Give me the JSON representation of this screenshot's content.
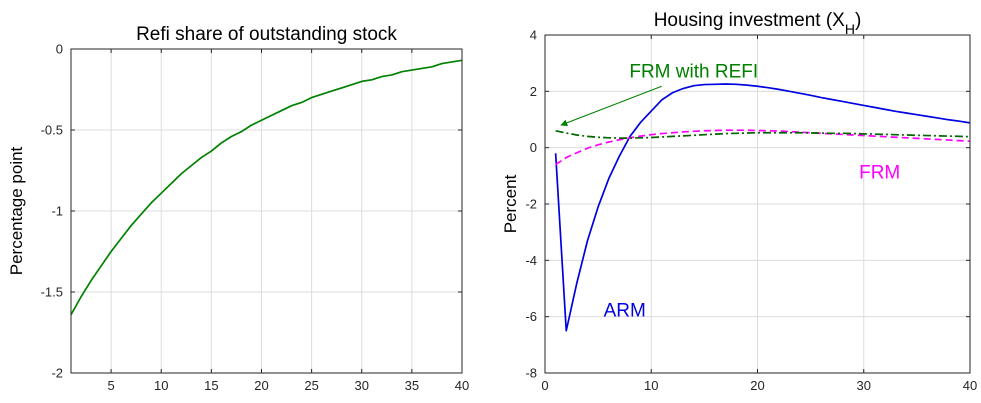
{
  "chart_data": [
    {
      "type": "line",
      "title": "Refi share of outstanding stock",
      "xlabel": "",
      "ylabel": "Percentage point",
      "xlim": [
        1,
        40
      ],
      "ylim": [
        -2,
        0
      ],
      "xticks": [
        5,
        10,
        15,
        20,
        25,
        30,
        35,
        40
      ],
      "yticks": [
        -2,
        -1.5,
        -1,
        -0.5,
        0
      ],
      "grid": true,
      "series": [
        {
          "color": "#008000",
          "style": "solid",
          "x": [
            1,
            2,
            3,
            4,
            5,
            6,
            7,
            8,
            9,
            10,
            11,
            12,
            13,
            14,
            15,
            16,
            17,
            18,
            19,
            20,
            21,
            22,
            23,
            24,
            25,
            26,
            27,
            28,
            29,
            30,
            31,
            32,
            33,
            34,
            35,
            36,
            37,
            38,
            39,
            40
          ],
          "values": [
            -1.64,
            -1.53,
            -1.43,
            -1.34,
            -1.25,
            -1.17,
            -1.09,
            -1.02,
            -0.95,
            -0.89,
            -0.83,
            -0.77,
            -0.72,
            -0.67,
            -0.63,
            -0.58,
            -0.54,
            -0.51,
            -0.47,
            -0.44,
            -0.41,
            -0.38,
            -0.35,
            -0.33,
            -0.3,
            -0.28,
            -0.26,
            -0.24,
            -0.22,
            -0.2,
            -0.19,
            -0.17,
            -0.16,
            -0.14,
            -0.13,
            -0.12,
            -0.11,
            -0.09,
            -0.08,
            -0.07
          ]
        }
      ]
    },
    {
      "type": "line",
      "title": "Housing investment (X",
      "title_sub": "H",
      "title_close": ")",
      "xlabel": "",
      "ylabel": "Percent",
      "xlim": [
        0,
        40
      ],
      "ylim": [
        -8,
        4
      ],
      "xticks": [
        0,
        10,
        20,
        30,
        40
      ],
      "yticks": [
        -8,
        -6,
        -4,
        -2,
        0,
        2,
        4
      ],
      "grid": true,
      "series": [
        {
          "name": "ARM",
          "color": "#0000e0",
          "style": "solid",
          "x": [
            1,
            2,
            3,
            4,
            5,
            6,
            7,
            8,
            9,
            10,
            11,
            12,
            13,
            14,
            15,
            16,
            17,
            18,
            19,
            20,
            21,
            22,
            23,
            24,
            25,
            26,
            27,
            28,
            29,
            30,
            31,
            32,
            33,
            34,
            35,
            36,
            37,
            38,
            39,
            40
          ],
          "values": [
            -0.2,
            -6.5,
            -4.8,
            -3.3,
            -2.1,
            -1.1,
            -0.3,
            0.4,
            0.9,
            1.3,
            1.7,
            1.95,
            2.1,
            2.2,
            2.24,
            2.25,
            2.26,
            2.25,
            2.22,
            2.18,
            2.13,
            2.07,
            2.0,
            1.93,
            1.86,
            1.78,
            1.71,
            1.64,
            1.57,
            1.5,
            1.43,
            1.36,
            1.29,
            1.23,
            1.17,
            1.11,
            1.05,
            0.99,
            0.94,
            0.88
          ]
        },
        {
          "name": "FRM",
          "color": "#ff00ff",
          "style": "dashed",
          "x": [
            1,
            2,
            3,
            4,
            5,
            6,
            7,
            8,
            9,
            10,
            11,
            12,
            13,
            14,
            15,
            16,
            17,
            18,
            19,
            20,
            21,
            22,
            23,
            24,
            25,
            26,
            27,
            28,
            29,
            30,
            31,
            32,
            33,
            34,
            35,
            36,
            37,
            38,
            39,
            40
          ],
          "values": [
            -0.6,
            -0.35,
            -0.18,
            -0.02,
            0.1,
            0.2,
            0.28,
            0.35,
            0.41,
            0.46,
            0.5,
            0.53,
            0.56,
            0.58,
            0.6,
            0.61,
            0.62,
            0.62,
            0.62,
            0.61,
            0.6,
            0.59,
            0.57,
            0.55,
            0.53,
            0.51,
            0.49,
            0.47,
            0.45,
            0.43,
            0.41,
            0.39,
            0.37,
            0.35,
            0.33,
            0.31,
            0.29,
            0.27,
            0.25,
            0.23
          ]
        },
        {
          "name": "FRM with REFI",
          "color": "#006400",
          "style": "dashdot",
          "x": [
            1,
            2,
            3,
            4,
            5,
            6,
            7,
            8,
            9,
            10,
            11,
            12,
            13,
            14,
            15,
            16,
            17,
            18,
            19,
            20,
            21,
            22,
            23,
            24,
            25,
            26,
            27,
            28,
            29,
            30,
            31,
            32,
            33,
            34,
            35,
            36,
            37,
            38,
            39,
            40
          ],
          "values": [
            0.6,
            0.52,
            0.45,
            0.4,
            0.37,
            0.35,
            0.34,
            0.34,
            0.35,
            0.36,
            0.38,
            0.4,
            0.42,
            0.44,
            0.46,
            0.48,
            0.5,
            0.51,
            0.52,
            0.53,
            0.53,
            0.53,
            0.53,
            0.53,
            0.52,
            0.52,
            0.51,
            0.51,
            0.5,
            0.49,
            0.48,
            0.47,
            0.46,
            0.45,
            0.44,
            0.43,
            0.42,
            0.41,
            0.4,
            0.39
          ]
        }
      ],
      "annotations": [
        {
          "text": "FRM with REFI",
          "color": "#008000",
          "x": 14,
          "y": 2.5,
          "arrow_to": [
            1.5,
            0.8
          ]
        },
        {
          "text": "FRM",
          "color": "#ff00ff",
          "x": 31.5,
          "y": -1.1
        },
        {
          "text": "ARM",
          "color": "#0000e0",
          "x": 7.5,
          "y": -6.0
        }
      ]
    }
  ]
}
